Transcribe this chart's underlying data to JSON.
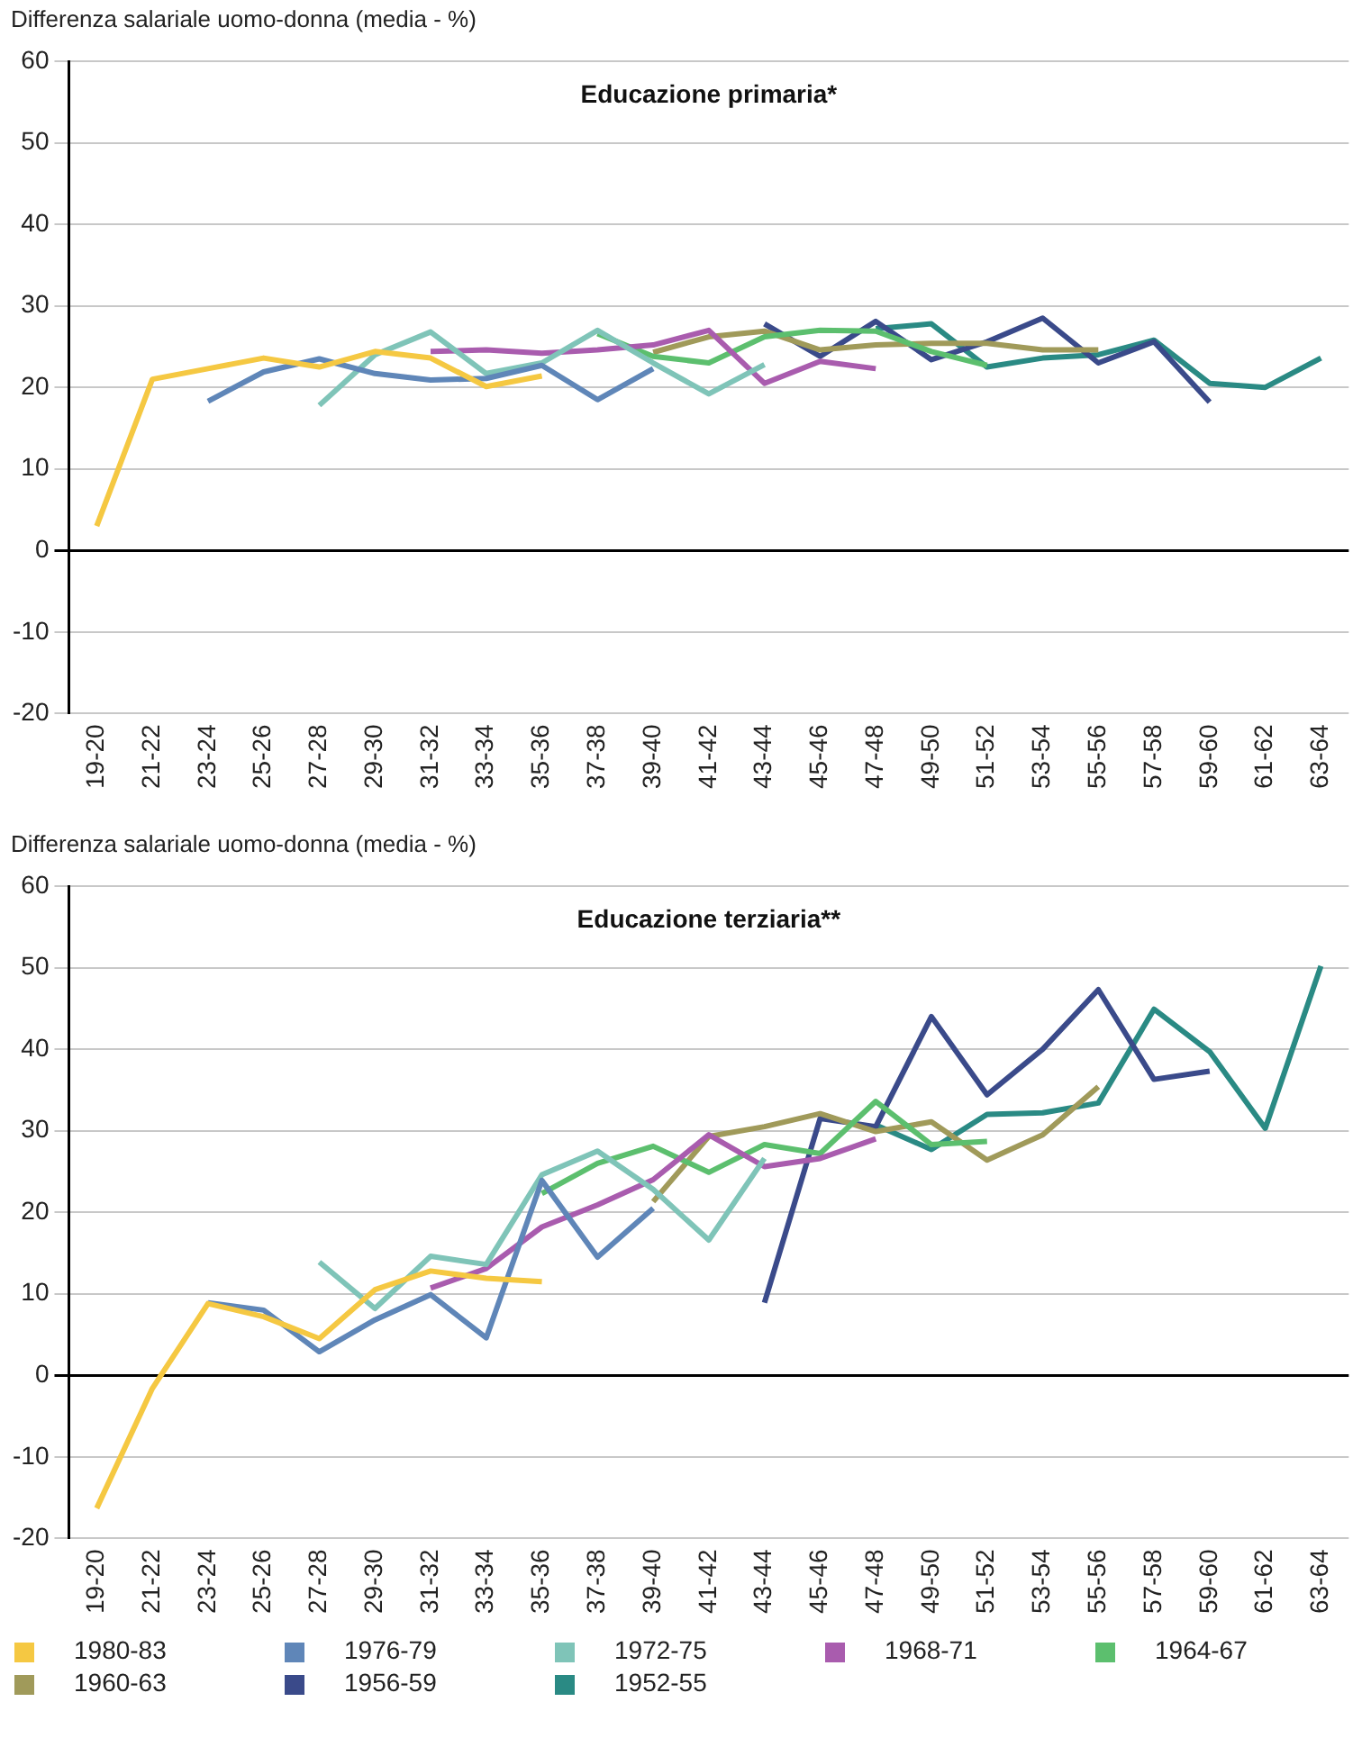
{
  "chart_data": [
    {
      "type": "line",
      "title": "Educazione primaria*",
      "ylabel": "Differenza salariale uomo-donna (media - %)",
      "categories": [
        "19-20",
        "21-22",
        "23-24",
        "25-26",
        "27-28",
        "29-30",
        "31-32",
        "33-34",
        "35-36",
        "37-38",
        "39-40",
        "41-42",
        "43-44",
        "45-46",
        "47-48",
        "49-50",
        "51-52",
        "53-54",
        "55-56",
        "57-58",
        "59-60",
        "61-62",
        "63-64"
      ],
      "ylim": [
        -20,
        60
      ],
      "yticks": [
        -20,
        -10,
        0,
        10,
        20,
        30,
        40,
        50,
        60
      ],
      "grid": "y",
      "legend": false,
      "marker": "none",
      "line_style": "solid",
      "series": [
        {
          "color": "#f5c842",
          "values": [
            3,
            21,
            22.3,
            23.6,
            22.5,
            24.4,
            23.6,
            20.1,
            21.4,
            null,
            null,
            null,
            null,
            null,
            null,
            null,
            null,
            null,
            null,
            null,
            null,
            null,
            null
          ]
        },
        {
          "color": "#5f86b8",
          "values": [
            null,
            null,
            18.3,
            21.9,
            23.5,
            21.7,
            20.9,
            21.1,
            22.7,
            18.5,
            22.3,
            null,
            null,
            null,
            null,
            null,
            null,
            null,
            null,
            null,
            null,
            null,
            null
          ]
        },
        {
          "color": "#7fc4b8",
          "values": [
            null,
            null,
            null,
            null,
            17.8,
            24,
            26.8,
            21.7,
            23,
            27,
            23,
            19.2,
            22.8,
            null,
            null,
            null,
            null,
            null,
            null,
            null,
            null,
            null,
            null
          ]
        },
        {
          "color": "#a95cae",
          "values": [
            null,
            null,
            null,
            null,
            null,
            null,
            24.4,
            24.6,
            24.2,
            24.6,
            25.2,
            27,
            20.5,
            23.2,
            22.3,
            null,
            null,
            null,
            null,
            null,
            null,
            null,
            null
          ]
        },
        {
          "color": "#5cbf6e",
          "values": [
            null,
            null,
            null,
            null,
            null,
            null,
            null,
            null,
            null,
            26.6,
            23.8,
            23,
            26.2,
            27,
            26.9,
            24.4,
            22.7,
            null,
            null,
            null,
            null,
            null,
            null
          ]
        },
        {
          "color": "#a09a5a",
          "values": [
            null,
            null,
            null,
            null,
            null,
            null,
            null,
            null,
            null,
            null,
            24.3,
            26.2,
            26.9,
            24.6,
            25.2,
            25.4,
            25.4,
            24.6,
            24.6,
            null,
            null,
            null,
            null
          ]
        },
        {
          "color": "#3a4a8a",
          "values": [
            null,
            null,
            null,
            null,
            null,
            null,
            null,
            null,
            null,
            null,
            null,
            null,
            27.8,
            23.8,
            28.1,
            23.4,
            25.6,
            28.5,
            23,
            25.6,
            18.2,
            null,
            null
          ]
        },
        {
          "color": "#2a8a84",
          "values": [
            null,
            null,
            null,
            null,
            null,
            null,
            null,
            null,
            null,
            null,
            null,
            null,
            null,
            null,
            27.2,
            27.8,
            22.5,
            23.6,
            24,
            25.8,
            20.5,
            20,
            23.6
          ]
        }
      ]
    },
    {
      "type": "line",
      "title": "Educazione terziaria**",
      "ylabel": "Differenza salariale uomo-donna (media - %)",
      "categories": [
        "19-20",
        "21-22",
        "23-24",
        "25-26",
        "27-28",
        "29-30",
        "31-32",
        "33-34",
        "35-36",
        "37-38",
        "39-40",
        "41-42",
        "43-44",
        "45-46",
        "47-48",
        "49-50",
        "51-52",
        "53-54",
        "55-56",
        "57-58",
        "59-60",
        "61-62",
        "63-64"
      ],
      "ylim": [
        -20,
        60
      ],
      "yticks": [
        -20,
        -10,
        0,
        10,
        20,
        30,
        40,
        50,
        60
      ],
      "grid": "y",
      "legend": "bottom",
      "marker": "none",
      "line_style": "solid",
      "series": [
        {
          "name": "1980-83",
          "color": "#f5c842",
          "values": [
            -16.3,
            -1.6,
            8.8,
            7.2,
            4.5,
            10.5,
            12.8,
            11.9,
            11.5,
            null,
            null,
            null,
            null,
            null,
            null,
            null,
            null,
            null,
            null,
            null,
            null,
            null,
            null
          ]
        },
        {
          "name": "1976-79",
          "color": "#5f86b8",
          "values": [
            null,
            null,
            8.9,
            8,
            2.9,
            6.8,
            9.9,
            4.6,
            23.9,
            14.5,
            20.5,
            null,
            null,
            null,
            null,
            null,
            null,
            null,
            null,
            null,
            null,
            null,
            null
          ]
        },
        {
          "name": "1972-75",
          "color": "#7fc4b8",
          "values": [
            null,
            null,
            null,
            null,
            13.9,
            8.2,
            14.6,
            13.6,
            24.6,
            27.5,
            22.8,
            16.6,
            26.6,
            null,
            null,
            null,
            null,
            null,
            null,
            null,
            null,
            null,
            null
          ]
        },
        {
          "name": "1968-71",
          "color": "#a95cae",
          "values": [
            null,
            null,
            null,
            null,
            null,
            null,
            10.7,
            13.1,
            18.2,
            20.9,
            24,
            29.5,
            25.6,
            26.6,
            29,
            null,
            null,
            null,
            null,
            null,
            null,
            null,
            null
          ]
        },
        {
          "name": "1964-67",
          "color": "#5cbf6e",
          "values": [
            null,
            null,
            null,
            null,
            null,
            null,
            null,
            null,
            22.3,
            26,
            28.1,
            24.9,
            28.3,
            27.2,
            33.6,
            28.3,
            28.7,
            null,
            null,
            null,
            null,
            null,
            null
          ]
        },
        {
          "name": "1960-63",
          "color": "#a09a5a",
          "values": [
            null,
            null,
            null,
            null,
            null,
            null,
            null,
            null,
            null,
            null,
            21.3,
            29.3,
            30.5,
            32.1,
            29.9,
            31.1,
            26.4,
            29.5,
            35.4,
            null,
            null,
            null,
            null
          ]
        },
        {
          "name": "1956-59",
          "color": "#3a4a8a",
          "values": [
            null,
            null,
            null,
            null,
            null,
            null,
            null,
            null,
            null,
            null,
            null,
            null,
            8.9,
            31.5,
            30.5,
            44,
            34.4,
            40,
            47.3,
            36.3,
            37.3,
            null,
            null
          ]
        },
        {
          "name": "1952-55",
          "color": "#2a8a84",
          "values": [
            null,
            null,
            null,
            null,
            null,
            null,
            null,
            null,
            null,
            null,
            null,
            null,
            null,
            null,
            30.7,
            27.7,
            32,
            32.2,
            33.4,
            44.9,
            39.7,
            30.3,
            50.2
          ]
        }
      ]
    }
  ]
}
